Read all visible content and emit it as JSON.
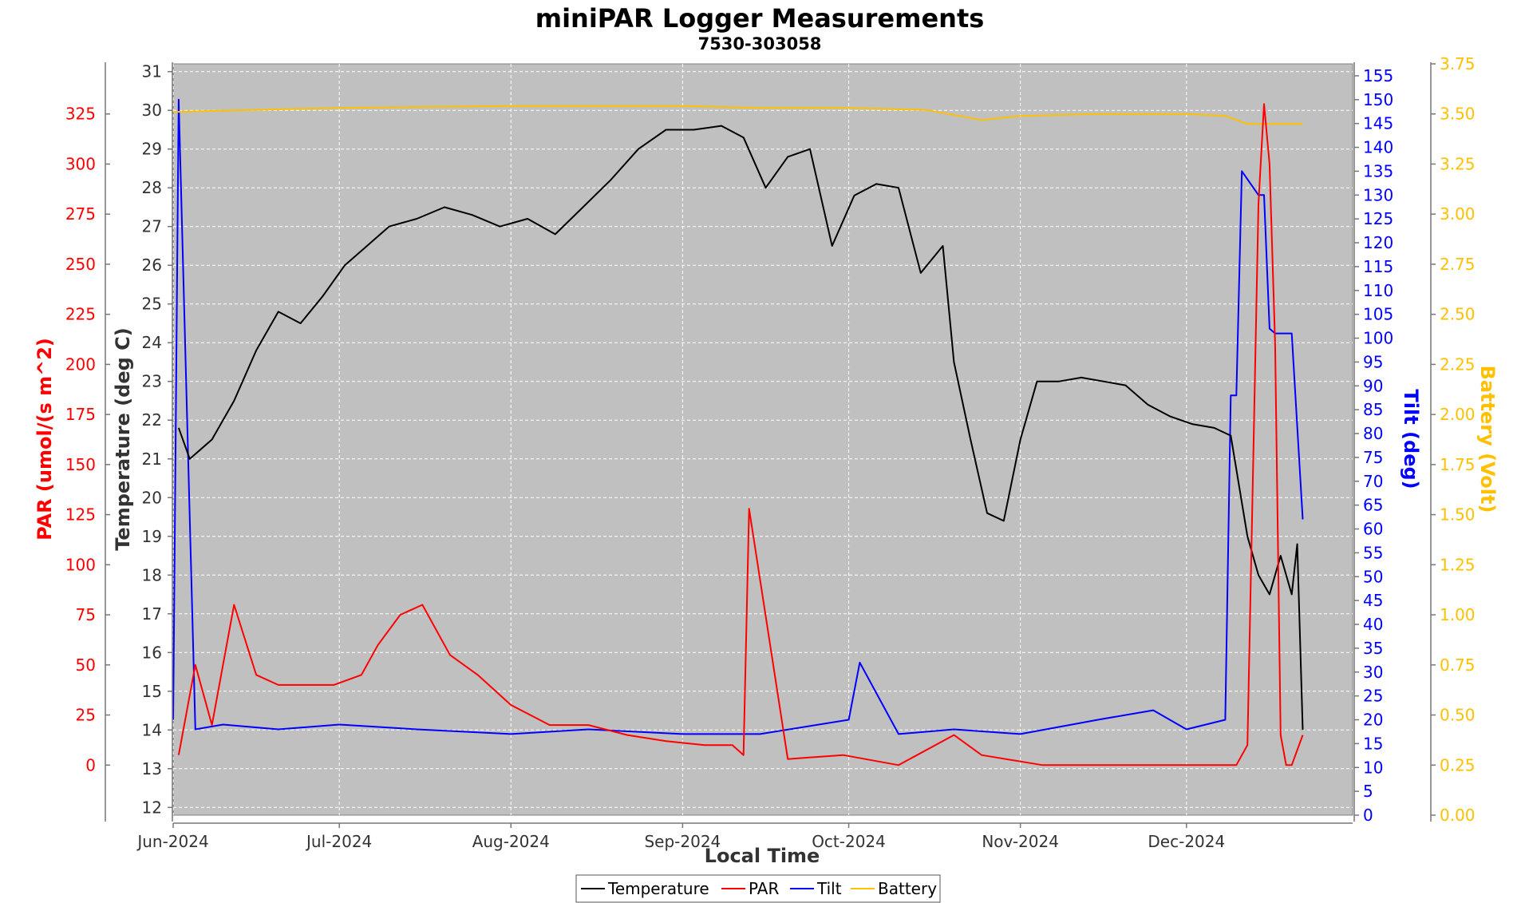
{
  "chart_data": {
    "type": "line",
    "title": "miniPAR Logger Measurements",
    "subtitle": "7530-303058",
    "xlabel": "Local Time",
    "x_ticks": [
      "Jun-2024",
      "Jul-2024",
      "Aug-2024",
      "Sep-2024",
      "Oct-2024",
      "Nov-2024",
      "Dec-2024"
    ],
    "x_range": [
      "2024-06-01",
      "2024-12-31"
    ],
    "grid": true,
    "background": "#c0c0c0",
    "legend_position": "bottom",
    "axes": {
      "par": {
        "label": "PAR (umol/(s m^2)",
        "color": "#ff0000",
        "range": [
          -25,
          350
        ],
        "ticks": [
          0,
          25,
          50,
          75,
          100,
          125,
          150,
          175,
          200,
          225,
          250,
          275,
          300,
          325
        ]
      },
      "temperature": {
        "label": "Temperature (deg C)",
        "color": "#333333",
        "range": [
          11.8,
          31.2
        ],
        "ticks": [
          12,
          13,
          14,
          15,
          16,
          17,
          18,
          19,
          20,
          21,
          22,
          23,
          24,
          25,
          26,
          27,
          28,
          29,
          30,
          31
        ]
      },
      "tilt": {
        "label": "Tilt (deg)",
        "color": "#0000ff",
        "range": [
          0,
          157.5
        ],
        "ticks": [
          0,
          5,
          10,
          15,
          20,
          25,
          30,
          35,
          40,
          45,
          50,
          55,
          60,
          65,
          70,
          75,
          80,
          85,
          90,
          95,
          100,
          105,
          110,
          115,
          120,
          125,
          130,
          135,
          140,
          145,
          150,
          155
        ]
      },
      "battery": {
        "label": "Battery (Volt)",
        "color": "#ffc000",
        "range": [
          0,
          3.75
        ],
        "ticks": [
          "0.00",
          "0.25",
          "0.50",
          "0.75",
          "1.00",
          "1.25",
          "1.50",
          "1.75",
          "2.00",
          "2.25",
          "2.50",
          "2.75",
          "3.00",
          "3.25",
          "3.50",
          "3.75"
        ]
      }
    },
    "series": [
      {
        "name": "Temperature",
        "axis": "temperature",
        "color": "#000000",
        "x": [
          "2024-06-02",
          "2024-06-04",
          "2024-06-08",
          "2024-06-12",
          "2024-06-16",
          "2024-06-20",
          "2024-06-24",
          "2024-06-28",
          "2024-07-02",
          "2024-07-06",
          "2024-07-10",
          "2024-07-15",
          "2024-07-20",
          "2024-07-25",
          "2024-07-30",
          "2024-08-04",
          "2024-08-09",
          "2024-08-14",
          "2024-08-19",
          "2024-08-24",
          "2024-08-29",
          "2024-09-03",
          "2024-09-08",
          "2024-09-12",
          "2024-09-16",
          "2024-09-20",
          "2024-09-24",
          "2024-09-28",
          "2024-10-02",
          "2024-10-06",
          "2024-10-10",
          "2024-10-14",
          "2024-10-18",
          "2024-10-20",
          "2024-10-23",
          "2024-10-26",
          "2024-10-29",
          "2024-11-01",
          "2024-11-04",
          "2024-11-08",
          "2024-11-12",
          "2024-11-16",
          "2024-11-20",
          "2024-11-24",
          "2024-11-28",
          "2024-12-02",
          "2024-12-06",
          "2024-12-09",
          "2024-12-12",
          "2024-12-14",
          "2024-12-16",
          "2024-12-18",
          "2024-12-20",
          "2024-12-21",
          "2024-12-22"
        ],
        "y": [
          21.8,
          21.0,
          21.5,
          22.5,
          23.8,
          24.8,
          24.5,
          25.2,
          26.0,
          26.5,
          27.0,
          27.2,
          27.5,
          27.3,
          27.0,
          27.2,
          26.8,
          27.5,
          28.2,
          29.0,
          29.5,
          29.5,
          29.6,
          29.3,
          28.0,
          28.8,
          29.0,
          26.5,
          27.8,
          28.1,
          28.0,
          25.8,
          26.5,
          23.5,
          21.5,
          19.6,
          19.4,
          21.5,
          23.0,
          23.0,
          23.1,
          23.0,
          22.9,
          22.4,
          22.1,
          21.9,
          21.8,
          21.6,
          19.0,
          18.0,
          17.5,
          18.5,
          17.5,
          18.8,
          14.0
        ]
      },
      {
        "name": "PAR",
        "axis": "par",
        "color": "#ff0000",
        "x": [
          "2024-06-02",
          "2024-06-05",
          "2024-06-08",
          "2024-06-12",
          "2024-06-16",
          "2024-06-20",
          "2024-06-25",
          "2024-06-30",
          "2024-07-05",
          "2024-07-08",
          "2024-07-12",
          "2024-07-16",
          "2024-07-21",
          "2024-07-26",
          "2024-08-01",
          "2024-08-08",
          "2024-08-15",
          "2024-08-22",
          "2024-08-29",
          "2024-09-05",
          "2024-09-10",
          "2024-09-12",
          "2024-09-13",
          "2024-09-20",
          "2024-09-30",
          "2024-10-10",
          "2024-10-20",
          "2024-10-25",
          "2024-11-05",
          "2024-11-20",
          "2024-12-05",
          "2024-12-10",
          "2024-12-12",
          "2024-12-14",
          "2024-12-15",
          "2024-12-16",
          "2024-12-17",
          "2024-12-18",
          "2024-12-19",
          "2024-12-20",
          "2024-12-22"
        ],
        "y": [
          5,
          50,
          20,
          80,
          45,
          40,
          40,
          40,
          45,
          60,
          75,
          80,
          55,
          45,
          30,
          20,
          20,
          15,
          12,
          10,
          10,
          5,
          128,
          3,
          5,
          0,
          15,
          5,
          0,
          0,
          0,
          0,
          10,
          280,
          330,
          300,
          210,
          15,
          0,
          0,
          15
        ]
      },
      {
        "name": "Tilt",
        "axis": "tilt",
        "color": "#0000ff",
        "x": [
          "2024-06-01",
          "2024-06-02",
          "2024-06-05",
          "2024-06-10",
          "2024-06-20",
          "2024-07-01",
          "2024-07-15",
          "2024-08-01",
          "2024-08-15",
          "2024-09-01",
          "2024-09-15",
          "2024-10-01",
          "2024-10-03",
          "2024-10-10",
          "2024-10-20",
          "2024-11-01",
          "2024-11-15",
          "2024-11-25",
          "2024-12-01",
          "2024-12-08",
          "2024-12-09",
          "2024-12-10",
          "2024-12-11",
          "2024-12-14",
          "2024-12-15",
          "2024-12-16",
          "2024-12-17",
          "2024-12-18",
          "2024-12-20",
          "2024-12-22"
        ],
        "y": [
          20,
          150,
          18,
          19,
          18,
          19,
          18,
          17,
          18,
          17,
          17,
          20,
          32,
          17,
          18,
          17,
          20,
          22,
          18,
          20,
          88,
          88,
          135,
          130,
          130,
          102,
          101,
          101,
          101,
          62
        ]
      },
      {
        "name": "Battery",
        "axis": "battery",
        "color": "#ffc000",
        "x": [
          "2024-06-01",
          "2024-06-15",
          "2024-07-01",
          "2024-08-01",
          "2024-09-01",
          "2024-09-15",
          "2024-10-01",
          "2024-10-15",
          "2024-10-25",
          "2024-11-01",
          "2024-11-15",
          "2024-12-01",
          "2024-12-08",
          "2024-12-12",
          "2024-12-22"
        ],
        "y": [
          3.51,
          3.52,
          3.53,
          3.54,
          3.54,
          3.53,
          3.53,
          3.52,
          3.47,
          3.49,
          3.5,
          3.5,
          3.49,
          3.45,
          3.45
        ]
      }
    ]
  }
}
